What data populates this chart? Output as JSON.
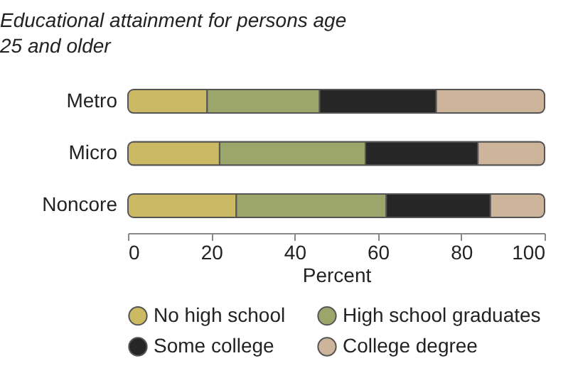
{
  "chart_data": {
    "type": "bar",
    "orientation": "horizontal",
    "stacked": true,
    "title": "Educational attainment for persons age 25 and older",
    "xlabel": "Percent",
    "categories": [
      "Metro",
      "Micro",
      "Noncore"
    ],
    "series": [
      {
        "name": "No high school",
        "color": "#cbb964",
        "values": [
          19,
          22,
          26
        ]
      },
      {
        "name": "High school graduates",
        "color": "#9ca66b",
        "values": [
          27,
          35,
          36
        ]
      },
      {
        "name": "Some college",
        "color": "#262626",
        "values": [
          28,
          27,
          25
        ]
      },
      {
        "name": "College degree",
        "color": "#cdb59b",
        "values": [
          26,
          16,
          13
        ]
      }
    ],
    "xlim": [
      0,
      100
    ],
    "xticks": [
      0,
      20,
      40,
      60,
      80,
      100
    ],
    "grid": false,
    "legend": "bottom"
  }
}
